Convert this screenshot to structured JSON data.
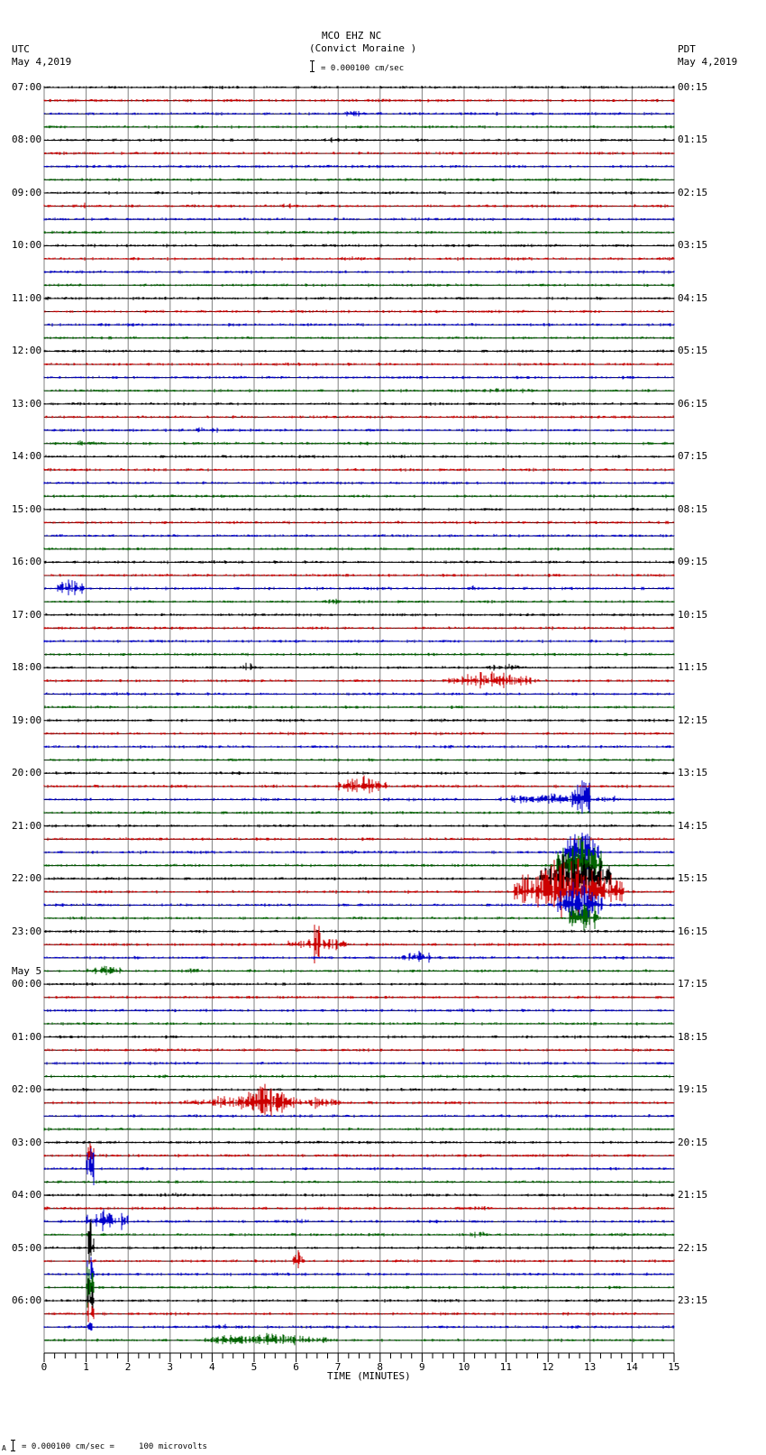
{
  "header": {
    "station_line": "MCO EHZ NC",
    "station_name": "(Convict Moraine )",
    "scale_text": "= 0.000100 cm/sec",
    "left_tz": "UTC",
    "left_date": "May 4,2019",
    "right_tz": "PDT",
    "right_date": "May 4,2019"
  },
  "footer": {
    "scale_text": "= 0.000100 cm/sec =     100 microvolts",
    "prefix": "A"
  },
  "colors": {
    "trace_cycle": [
      "#000000",
      "#cc0000",
      "#0000cc",
      "#006400"
    ],
    "grid": "#808080",
    "baseline": "#000000"
  },
  "chart_data": {
    "type": "line",
    "title": "MCO EHZ NC (Convict Moraine )",
    "subtitle": "= 0.000100 cm/sec",
    "xlabel": "TIME (MINUTES)",
    "ylabel": "",
    "xlim": [
      0,
      15
    ],
    "x_ticks": [
      "0",
      "1",
      "2",
      "3",
      "4",
      "5",
      "6",
      "7",
      "8",
      "9",
      "10",
      "11",
      "12",
      "13",
      "14",
      "15"
    ],
    "minor_ticks_per_minute": 4,
    "grid": true,
    "traces_per_hour": 4,
    "trace_count": 96,
    "left_axis_labels": [
      {
        "row": 0,
        "text": "07:00"
      },
      {
        "row": 4,
        "text": "08:00"
      },
      {
        "row": 8,
        "text": "09:00"
      },
      {
        "row": 12,
        "text": "10:00"
      },
      {
        "row": 16,
        "text": "11:00"
      },
      {
        "row": 20,
        "text": "12:00"
      },
      {
        "row": 24,
        "text": "13:00"
      },
      {
        "row": 28,
        "text": "14:00"
      },
      {
        "row": 32,
        "text": "15:00"
      },
      {
        "row": 36,
        "text": "16:00"
      },
      {
        "row": 40,
        "text": "17:00"
      },
      {
        "row": 44,
        "text": "18:00"
      },
      {
        "row": 48,
        "text": "19:00"
      },
      {
        "row": 52,
        "text": "20:00"
      },
      {
        "row": 56,
        "text": "21:00"
      },
      {
        "row": 60,
        "text": "22:00"
      },
      {
        "row": 64,
        "text": "23:00"
      },
      {
        "row": 68,
        "text": "00:00",
        "date": "May 5"
      },
      {
        "row": 72,
        "text": "01:00"
      },
      {
        "row": 76,
        "text": "02:00"
      },
      {
        "row": 80,
        "text": "03:00"
      },
      {
        "row": 84,
        "text": "04:00"
      },
      {
        "row": 88,
        "text": "05:00"
      },
      {
        "row": 92,
        "text": "06:00"
      }
    ],
    "right_axis_labels": [
      {
        "row": 0,
        "text": "00:15"
      },
      {
        "row": 4,
        "text": "01:15"
      },
      {
        "row": 8,
        "text": "02:15"
      },
      {
        "row": 12,
        "text": "03:15"
      },
      {
        "row": 16,
        "text": "04:15"
      },
      {
        "row": 20,
        "text": "05:15"
      },
      {
        "row": 24,
        "text": "06:15"
      },
      {
        "row": 28,
        "text": "07:15"
      },
      {
        "row": 32,
        "text": "08:15"
      },
      {
        "row": 36,
        "text": "09:15"
      },
      {
        "row": 40,
        "text": "10:15"
      },
      {
        "row": 44,
        "text": "11:15"
      },
      {
        "row": 48,
        "text": "12:15"
      },
      {
        "row": 52,
        "text": "13:15"
      },
      {
        "row": 56,
        "text": "14:15"
      },
      {
        "row": 60,
        "text": "15:15"
      },
      {
        "row": 64,
        "text": "16:15"
      },
      {
        "row": 68,
        "text": "17:15"
      },
      {
        "row": 72,
        "text": "18:15"
      },
      {
        "row": 76,
        "text": "19:15"
      },
      {
        "row": 80,
        "text": "20:15"
      },
      {
        "row": 84,
        "text": "21:15"
      },
      {
        "row": 88,
        "text": "22:15"
      },
      {
        "row": 92,
        "text": "23:15"
      }
    ],
    "events": [
      {
        "row": 1,
        "start": 7.3,
        "end": 8.8,
        "amp": 3
      },
      {
        "row": 2,
        "start": 3.5,
        "end": 4.2,
        "amp": 3
      },
      {
        "row": 2,
        "start": 7.1,
        "end": 7.7,
        "amp": 6
      },
      {
        "row": 4,
        "start": 6.3,
        "end": 7.6,
        "amp": 4
      },
      {
        "row": 4,
        "start": 8.7,
        "end": 9.1,
        "amp": 4
      },
      {
        "row": 5,
        "start": 2.6,
        "end": 3.0,
        "amp": 3
      },
      {
        "row": 9,
        "start": 0.9,
        "end": 1.0,
        "amp": 6
      },
      {
        "row": 9,
        "start": 5.3,
        "end": 6.2,
        "amp": 4
      },
      {
        "row": 13,
        "start": 7.0,
        "end": 7.8,
        "amp": 4
      },
      {
        "row": 17,
        "start": 4.0,
        "end": 4.8,
        "amp": 3
      },
      {
        "row": 18,
        "start": 1.5,
        "end": 3.0,
        "amp": 3
      },
      {
        "row": 18,
        "start": 4.4,
        "end": 4.7,
        "amp": 4
      },
      {
        "row": 23,
        "start": 10.2,
        "end": 11.9,
        "amp": 5
      },
      {
        "row": 26,
        "start": 3.5,
        "end": 4.2,
        "amp": 6
      },
      {
        "row": 27,
        "start": 0.6,
        "end": 1.3,
        "amp": 5
      },
      {
        "row": 38,
        "start": 0.3,
        "end": 1.0,
        "amp": 16
      },
      {
        "row": 38,
        "start": 10.1,
        "end": 10.4,
        "amp": 7
      },
      {
        "row": 39,
        "start": 6.6,
        "end": 7.1,
        "amp": 6
      },
      {
        "row": 44,
        "start": 3.9,
        "end": 4.3,
        "amp": 5
      },
      {
        "row": 44,
        "start": 4.7,
        "end": 5.0,
        "amp": 10
      },
      {
        "row": 44,
        "start": 10.5,
        "end": 11.5,
        "amp": 6
      },
      {
        "row": 45,
        "start": 9.5,
        "end": 11.8,
        "amp": 12
      },
      {
        "row": 53,
        "start": 7.0,
        "end": 8.2,
        "amp": 14
      },
      {
        "row": 54,
        "start": 10.8,
        "end": 13.8,
        "amp": 10
      },
      {
        "row": 54,
        "start": 12.5,
        "end": 12.9,
        "amp": 22
      },
      {
        "row": 54,
        "start": 12.7,
        "end": 13.0,
        "amp": 60
      },
      {
        "row": 58,
        "start": 12.4,
        "end": 13.2,
        "amp": 40
      },
      {
        "row": 59,
        "start": 12.2,
        "end": 13.3,
        "amp": 40
      },
      {
        "row": 60,
        "start": 11.8,
        "end": 13.5,
        "amp": 40
      },
      {
        "row": 61,
        "start": 11.2,
        "end": 13.8,
        "amp": 45
      },
      {
        "row": 62,
        "start": 12.2,
        "end": 13.3,
        "amp": 40
      },
      {
        "row": 63,
        "start": 12.5,
        "end": 13.2,
        "amp": 40
      },
      {
        "row": 65,
        "start": 5.8,
        "end": 7.2,
        "amp": 12
      },
      {
        "row": 65,
        "start": 6.4,
        "end": 6.6,
        "amp": 40
      },
      {
        "row": 66,
        "start": 8.5,
        "end": 9.4,
        "amp": 10
      },
      {
        "row": 67,
        "start": 1.0,
        "end": 1.9,
        "amp": 8
      },
      {
        "row": 67,
        "start": 3.4,
        "end": 3.8,
        "amp": 6
      },
      {
        "row": 77,
        "start": 3.3,
        "end": 7.1,
        "amp": 12
      },
      {
        "row": 77,
        "start": 4.6,
        "end": 5.9,
        "amp": 28
      },
      {
        "row": 81,
        "start": 1.0,
        "end": 1.2,
        "amp": 40
      },
      {
        "row": 82,
        "start": 1.0,
        "end": 1.2,
        "amp": 40
      },
      {
        "row": 84,
        "start": 2.5,
        "end": 4.0,
        "amp": 4
      },
      {
        "row": 85,
        "start": 10.0,
        "end": 10.8,
        "amp": 4
      },
      {
        "row": 86,
        "start": 1.0,
        "end": 2.0,
        "amp": 22
      },
      {
        "row": 86,
        "start": 6.0,
        "end": 6.3,
        "amp": 7
      },
      {
        "row": 87,
        "start": 10.1,
        "end": 10.6,
        "amp": 5
      },
      {
        "row": 88,
        "start": 1.0,
        "end": 1.2,
        "amp": 40
      },
      {
        "row": 89,
        "start": 5.9,
        "end": 6.2,
        "amp": 18
      },
      {
        "row": 90,
        "start": 1.0,
        "end": 1.2,
        "amp": 40
      },
      {
        "row": 91,
        "start": 1.0,
        "end": 1.2,
        "amp": 40
      },
      {
        "row": 92,
        "start": 1.0,
        "end": 1.2,
        "amp": 40
      },
      {
        "row": 93,
        "start": 1.0,
        "end": 1.2,
        "amp": 40
      },
      {
        "row": 94,
        "start": 1.0,
        "end": 1.2,
        "amp": 12
      },
      {
        "row": 94,
        "start": 3.6,
        "end": 5.2,
        "amp": 4
      },
      {
        "row": 95,
        "start": 3.8,
        "end": 6.8,
        "amp": 10
      }
    ]
  }
}
